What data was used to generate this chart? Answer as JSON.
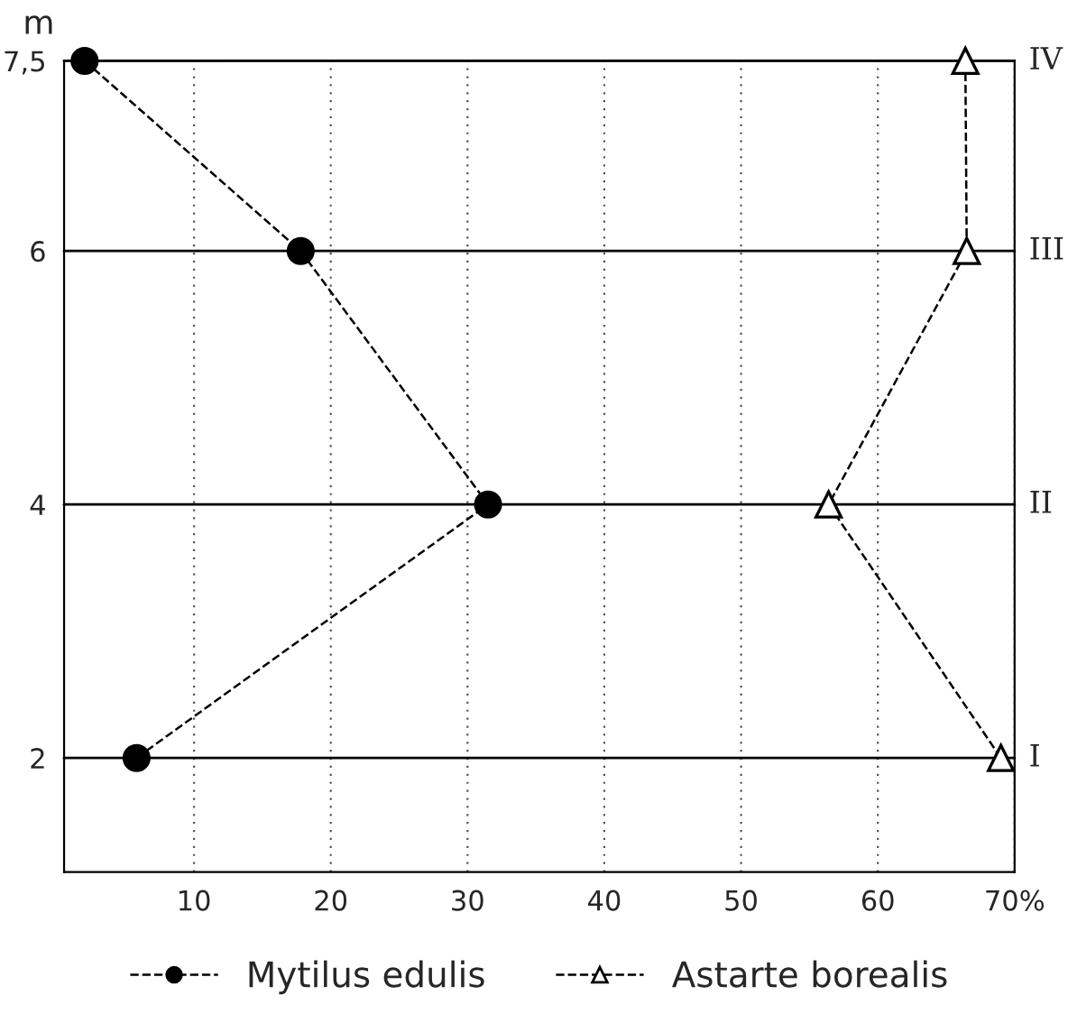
{
  "chart_data": {
    "type": "line",
    "ylabel": "m",
    "series": [
      {
        "name": "Mytilus edulis",
        "color": "#000000",
        "marker": "circle",
        "line_style": "dashed",
        "x": [
          2,
          17.8,
          31.5,
          5.8
        ],
        "values": [
          7.5,
          6,
          4,
          2
        ]
      },
      {
        "name": "Astarte borealis",
        "color": "#000000",
        "marker": "triangle",
        "line_style": "dashed",
        "x": [
          66.4,
          66.5,
          56.4,
          69
        ],
        "values": [
          7.5,
          6,
          4,
          2
        ]
      }
    ],
    "xlim": [
      0.5,
      70
    ],
    "xticks": [
      10,
      20,
      30,
      40,
      50,
      60,
      {
        "value": 70,
        "label": "70%"
      }
    ],
    "ylim": [
      1.1,
      7.5
    ],
    "yticks": [
      2,
      4,
      6,
      {
        "value": 7.5,
        "label": "7,5"
      }
    ],
    "ref_lines": [
      {
        "axis": "y",
        "value": 2,
        "label": "I"
      },
      {
        "axis": "y",
        "value": 4,
        "label": "II"
      },
      {
        "axis": "y",
        "value": 6,
        "label": "III"
      },
      {
        "axis": "y",
        "value": 7.5,
        "label": "IV"
      }
    ],
    "grid": "x",
    "legend": "bottom"
  }
}
